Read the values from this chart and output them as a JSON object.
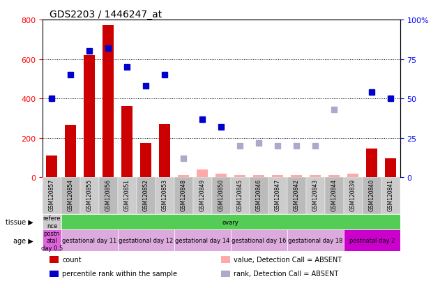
{
  "title": "GDS2203 / 1446247_at",
  "samples": [
    "GSM120857",
    "GSM120854",
    "GSM120855",
    "GSM120856",
    "GSM120851",
    "GSM120852",
    "GSM120853",
    "GSM120848",
    "GSM120849",
    "GSM120850",
    "GSM120845",
    "GSM120846",
    "GSM120847",
    "GSM120842",
    "GSM120843",
    "GSM120844",
    "GSM120839",
    "GSM120840",
    "GSM120841"
  ],
  "count": [
    110,
    265,
    620,
    770,
    360,
    175,
    270,
    null,
    null,
    null,
    null,
    null,
    null,
    null,
    null,
    null,
    null,
    145,
    95
  ],
  "percentile": [
    50,
    65,
    80,
    82,
    70,
    58,
    65,
    null,
    37,
    32,
    null,
    null,
    null,
    null,
    null,
    null,
    null,
    54,
    50
  ],
  "absent_count": [
    null,
    null,
    null,
    null,
    null,
    null,
    null,
    12,
    40,
    20,
    10,
    10,
    10,
    10,
    10,
    10,
    18,
    null,
    null
  ],
  "absent_rank": [
    null,
    null,
    null,
    null,
    null,
    null,
    null,
    12,
    null,
    null,
    20,
    22,
    20,
    20,
    20,
    43,
    null,
    null,
    null
  ],
  "count_color": "#cc0000",
  "absent_count_color": "#ffaaaa",
  "percentile_color": "#0000cc",
  "absent_rank_color": "#aaaacc",
  "bg_color": "#ffffff",
  "plot_bg": "#ffffff",
  "ylim_left": [
    0,
    800
  ],
  "ylim_right": [
    0,
    100
  ],
  "yticks_left": [
    0,
    200,
    400,
    600,
    800
  ],
  "yticks_right": [
    0,
    25,
    50,
    75,
    100
  ],
  "tissue_labels": [
    {
      "text": "refere\nnce",
      "color": "#cccccc",
      "start": 0,
      "end": 1
    },
    {
      "text": "ovary",
      "color": "#55cc55",
      "start": 1,
      "end": 19
    }
  ],
  "age_labels": [
    {
      "text": "postn\natal\nday 0.5",
      "color": "#dd66dd",
      "start": 0,
      "end": 1
    },
    {
      "text": "gestational day 11",
      "color": "#ddaadd",
      "start": 1,
      "end": 4
    },
    {
      "text": "gestational day 12",
      "color": "#ddaadd",
      "start": 4,
      "end": 7
    },
    {
      "text": "gestational day 14",
      "color": "#ddaadd",
      "start": 7,
      "end": 10
    },
    {
      "text": "gestational day 16",
      "color": "#ddaadd",
      "start": 10,
      "end": 13
    },
    {
      "text": "gestational day 18",
      "color": "#ddaadd",
      "start": 13,
      "end": 16
    },
    {
      "text": "postnatal day 2",
      "color": "#cc00cc",
      "start": 16,
      "end": 19
    }
  ],
  "bar_width": 0.6,
  "marker_size": 6,
  "grid_yticks": [
    200,
    400,
    600
  ]
}
